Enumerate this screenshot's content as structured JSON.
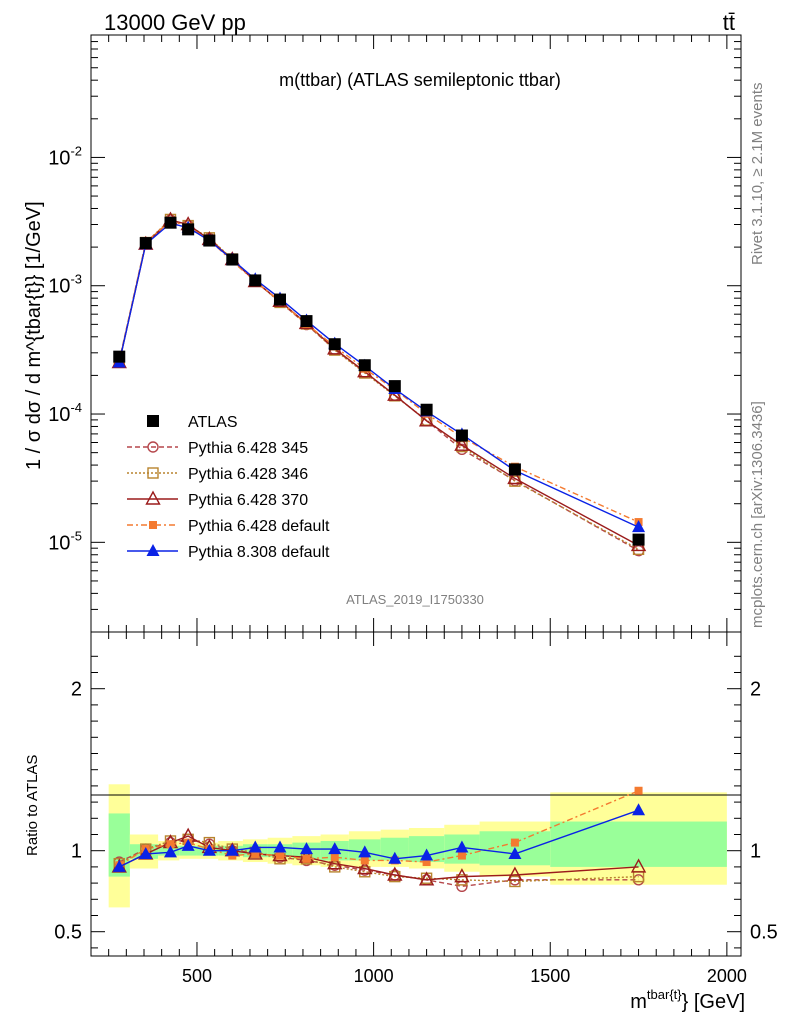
{
  "header": {
    "left": "13000 GeV pp",
    "right": "tt̄"
  },
  "side": {
    "rivet": "Rivet 3.1.10, ≥ 2.1M events",
    "source": "mcplots.cern.ch [arXiv:1306.3436]"
  },
  "chart_data": {
    "type": "line",
    "title": "m(ttbar) (ATLAS semileptonic ttbar)",
    "watermark": "ATLAS_2019_I1750330",
    "xlabel_main": "m",
    "xlabel_sup": "tbar{t}",
    "xlabel_tail": "} [GeV]",
    "ylabel": "1 / σ dσ / d m^{tbar{t}} [1/GeV]",
    "ratio_ylabel": "Ratio to ATLAS",
    "xlim": [
      200,
      2040
    ],
    "ylim": [
      2e-06,
      0.09
    ],
    "ratio_ylim": [
      0.35,
      2.35
    ],
    "yscale": "log",
    "x_ticks": [
      "500",
      "1000",
      "1500",
      "2000"
    ],
    "y_ticks": [
      {
        "base": "10",
        "exp": "-5"
      },
      {
        "base": "10",
        "exp": "-4"
      },
      {
        "base": "10",
        "exp": "-3"
      },
      {
        "base": "10",
        "exp": "-2"
      }
    ],
    "ratio_ticks": [
      "0.5",
      "1",
      "2"
    ],
    "x": [
      280,
      355,
      425,
      475,
      535,
      600,
      665,
      735,
      810,
      890,
      975,
      1060,
      1150,
      1250,
      1400,
      1750
    ],
    "bin_edges": [
      250,
      310,
      390,
      450,
      500,
      560,
      630,
      700,
      770,
      850,
      930,
      1020,
      1100,
      1200,
      1300,
      1500,
      2000
    ],
    "band_outer": [
      [
        0.65,
        1.41
      ],
      [
        0.89,
        1.1
      ],
      [
        0.94,
        1.06
      ],
      [
        0.95,
        1.05
      ],
      [
        0.95,
        1.05
      ],
      [
        0.94,
        1.06
      ],
      [
        0.93,
        1.07
      ],
      [
        0.92,
        1.08
      ],
      [
        0.91,
        1.09
      ],
      [
        0.9,
        1.1
      ],
      [
        0.9,
        1.12
      ],
      [
        0.9,
        1.13
      ],
      [
        0.89,
        1.14
      ],
      [
        0.87,
        1.16
      ],
      [
        0.84,
        1.18
      ],
      [
        0.79,
        1.36
      ]
    ],
    "band_inner": [
      [
        0.84,
        1.23
      ],
      [
        0.95,
        1.04
      ],
      [
        0.97,
        1.03
      ],
      [
        0.97,
        1.03
      ],
      [
        0.97,
        1.03
      ],
      [
        0.97,
        1.03
      ],
      [
        0.96,
        1.04
      ],
      [
        0.96,
        1.04
      ],
      [
        0.95,
        1.05
      ],
      [
        0.94,
        1.06
      ],
      [
        0.94,
        1.07
      ],
      [
        0.94,
        1.08
      ],
      [
        0.93,
        1.09
      ],
      [
        0.92,
        1.1
      ],
      [
        0.91,
        1.12
      ],
      [
        0.9,
        1.18
      ]
    ],
    "series": [
      {
        "name": "ATLAS",
        "color": "#000000",
        "marker": "square-filled",
        "dash": "none",
        "values": [
          0.00028,
          0.00215,
          0.0031,
          0.00275,
          0.00225,
          0.0016,
          0.0011,
          0.00078,
          0.00053,
          0.00035,
          0.00024,
          0.000165,
          0.000108,
          6.8e-05,
          3.7e-05,
          1.05e-05
        ]
      },
      {
        "name": "Pythia 6.428 345",
        "color": "#b5474c",
        "marker": "circle-open",
        "dash": "5,3",
        "ratio": [
          0.93,
          1.01,
          1.05,
          1.07,
          1.04,
          1.0,
          0.99,
          0.96,
          0.94,
          0.91,
          0.88,
          0.85,
          0.82,
          0.78,
          0.82,
          0.82
        ]
      },
      {
        "name": "Pythia 6.428 346",
        "color": "#b8842e",
        "marker": "square-open",
        "dash": "2,2",
        "ratio": [
          0.92,
          1.01,
          1.06,
          1.07,
          1.05,
          1.01,
          0.99,
          0.95,
          0.95,
          0.9,
          0.87,
          0.84,
          0.83,
          0.82,
          0.81,
          0.84
        ]
      },
      {
        "name": "Pythia 6.428 370",
        "color": "#9b1c1c",
        "marker": "triangle-open",
        "dash": "none",
        "ratio": [
          0.9,
          0.98,
          1.05,
          1.09,
          1.02,
          1.0,
          0.98,
          0.97,
          0.96,
          0.92,
          0.89,
          0.85,
          0.82,
          0.84,
          0.85,
          0.9
        ]
      },
      {
        "name": "Pythia 6.428 default",
        "color": "#f47a30",
        "marker": "square-filled-small",
        "dash": "6,3,2,3",
        "ratio": [
          0.91,
          1.01,
          1.04,
          1.05,
          1.01,
          0.97,
          0.98,
          0.97,
          0.95,
          0.96,
          0.94,
          0.94,
          0.93,
          0.97,
          1.05,
          1.37
        ]
      },
      {
        "name": "Pythia 8.308 default",
        "color": "#0a22e6",
        "marker": "triangle-filled",
        "dash": "none",
        "ratio": [
          0.9,
          0.98,
          0.99,
          1.03,
          1.0,
          1.0,
          1.02,
          1.02,
          1.01,
          1.01,
          0.99,
          0.95,
          0.97,
          1.02,
          0.98,
          1.25
        ]
      }
    ]
  }
}
